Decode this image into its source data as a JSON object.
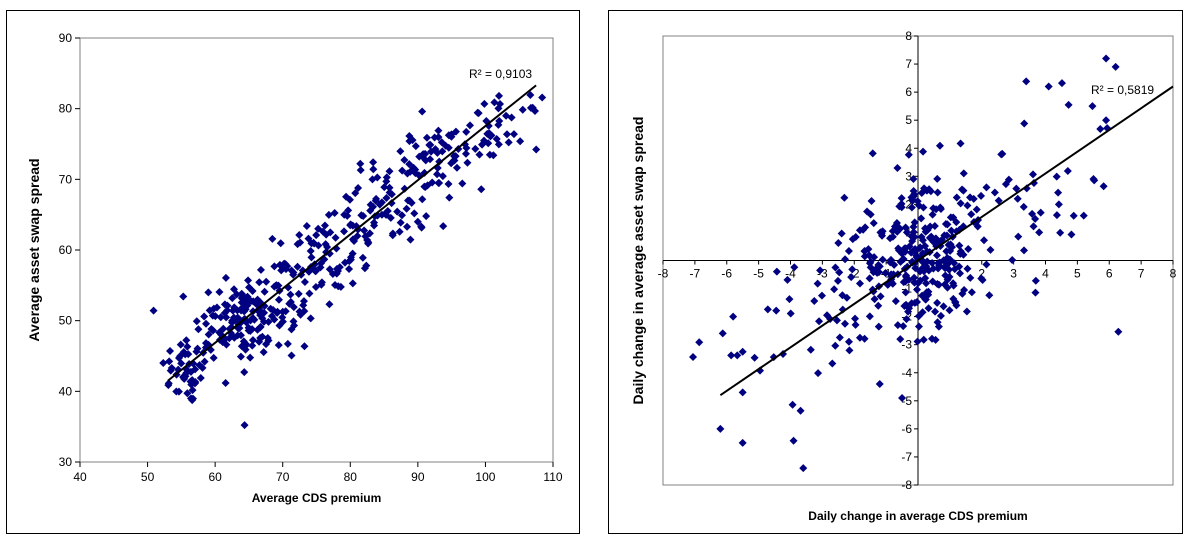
{
  "chart_data": [
    {
      "type": "scatter",
      "xlabel": "Average CDS premium",
      "ylabel": "Average asset swap spread",
      "xlim": [
        40,
        110
      ],
      "ylim": [
        30,
        90
      ],
      "xticks": [
        40,
        50,
        60,
        70,
        80,
        90,
        100,
        110
      ],
      "yticks": [
        30,
        40,
        50,
        60,
        70,
        80,
        90
      ],
      "axes_style": "box",
      "marker": "diamond",
      "marker_color": "#000080",
      "annotation": "R² = 0,9103",
      "trendline": {
        "from": [
          53,
          41.5
        ],
        "to": [
          107.5,
          83.3
        ]
      },
      "clusters": [
        {
          "count": 50,
          "center": [
            56,
            43
          ],
          "spread": [
            2,
            2.5
          ]
        },
        {
          "count": 90,
          "center": [
            63,
            50
          ],
          "spread": [
            3,
            3
          ]
        },
        {
          "count": 80,
          "center": [
            69,
            52
          ],
          "spread": [
            3,
            4
          ]
        },
        {
          "count": 50,
          "center": [
            75,
            58
          ],
          "spread": [
            3,
            3
          ]
        },
        {
          "count": 40,
          "center": [
            80,
            62
          ],
          "spread": [
            3,
            3
          ]
        },
        {
          "count": 50,
          "center": [
            86,
            67
          ],
          "spread": [
            3,
            3
          ]
        },
        {
          "count": 50,
          "center": [
            91,
            72
          ],
          "spread": [
            3,
            3
          ]
        },
        {
          "count": 25,
          "center": [
            97,
            74
          ],
          "spread": [
            3,
            2
          ]
        },
        {
          "count": 30,
          "center": [
            103,
            78
          ],
          "spread": [
            2.5,
            1.8
          ]
        }
      ]
    },
    {
      "type": "scatter",
      "xlabel": "Daily change in average CDS premium",
      "ylabel": "Daily change in average asset swap spread",
      "xlim": [
        -8,
        8
      ],
      "ylim": [
        -8,
        8
      ],
      "xticks": [
        -8,
        -7,
        -6,
        -5,
        -4,
        -3,
        -2,
        -1,
        1,
        2,
        3,
        4,
        5,
        6,
        7,
        8
      ],
      "yticks": [
        -8,
        -7,
        -6,
        -5,
        -4,
        -3,
        -2,
        -1,
        1,
        2,
        3,
        4,
        5,
        6,
        7,
        8
      ],
      "axes_style": "cross",
      "marker": "diamond",
      "marker_color": "#000080",
      "annotation": "R² = 0,5819",
      "trendline": {
        "from": [
          -6.2,
          -4.8
        ],
        "to": [
          8,
          6.2
        ]
      },
      "clusters": [
        {
          "count": 260,
          "center": [
            0,
            0.1
          ],
          "spread": [
            1.1,
            1.2
          ]
        },
        {
          "count": 50,
          "center": [
            -2.5,
            -1.5
          ],
          "spread": [
            1.4,
            1.2
          ]
        },
        {
          "count": 50,
          "center": [
            2.5,
            1.8
          ],
          "spread": [
            1.4,
            1.3
          ]
        },
        {
          "count": 14,
          "center": [
            -4.8,
            -3.5
          ],
          "spread": [
            1.0,
            1.2
          ]
        },
        {
          "count": 14,
          "center": [
            5,
            4
          ],
          "spread": [
            1.0,
            1.3
          ]
        }
      ],
      "points": [
        [
          -6.2,
          -6.0
        ],
        [
          -5.5,
          -6.5
        ],
        [
          -3.6,
          -7.4
        ],
        [
          -5.5,
          -4.7
        ],
        [
          5.9,
          7.2
        ],
        [
          6.2,
          6.9
        ],
        [
          4.1,
          6.2
        ],
        [
          5.9,
          5.0
        ],
        [
          5.2,
          1.6
        ],
        [
          -5.8,
          -2.0
        ],
        [
          -1.2,
          -4.4
        ],
        [
          -0.5,
          -4.9
        ]
      ]
    }
  ]
}
